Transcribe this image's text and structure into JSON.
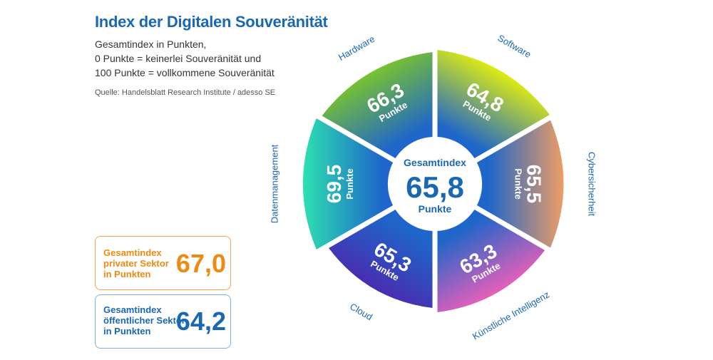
{
  "header": {
    "title": "Index der Digitalen Souveränität",
    "subtitle_lines": [
      "Gesamtindex in Punkten,",
      "0 Punkte = keinerlei Souveränität und",
      "100 Punkte = vollkommene Souveränität"
    ],
    "source": "Quelle: Handelsblatt Research Institute / adesso SE"
  },
  "boxes": {
    "private": {
      "label_lines": [
        "Gesamtindex",
        "privater Sektor",
        "in Punkten"
      ],
      "value": "67,0",
      "color": "#ee8a12"
    },
    "public": {
      "label_lines": [
        "Gesamtindex",
        "öffentlicher Sektor",
        "in Punkten"
      ],
      "value": "64,2",
      "color": "#1a67b3"
    }
  },
  "center": {
    "title": "Gesamtindex",
    "value": "65,8",
    "unit": "Punkte"
  },
  "chart_data": {
    "type": "pie",
    "title": "Index der Digitalen Souveränität",
    "unit": "Punkte",
    "total": 65.8,
    "segments": [
      {
        "category": "Hardware",
        "value": 66.3,
        "label": "66,3",
        "colors": [
          "#7cc62a",
          "#1e66c9"
        ]
      },
      {
        "category": "Software",
        "value": 64.8,
        "label": "64,8",
        "colors": [
          "#e6f20a",
          "#1e66c9"
        ]
      },
      {
        "category": "Cybersicherheit",
        "value": 65.5,
        "label": "65,5",
        "colors": [
          "#f69f60",
          "#1e66c9"
        ]
      },
      {
        "category": "Künstliche Intelligenz",
        "value": 63.3,
        "label": "63,3",
        "colors": [
          "#ee5fb9",
          "#1e66c9"
        ]
      },
      {
        "category": "Cloud",
        "value": 65.3,
        "label": "65,3",
        "colors": [
          "#4a2bb0",
          "#1e66c9"
        ]
      },
      {
        "category": "Datenmanagement",
        "value": 69.5,
        "label": "69,5",
        "colors": [
          "#2ee6b0",
          "#1e66c9"
        ]
      }
    ]
  }
}
